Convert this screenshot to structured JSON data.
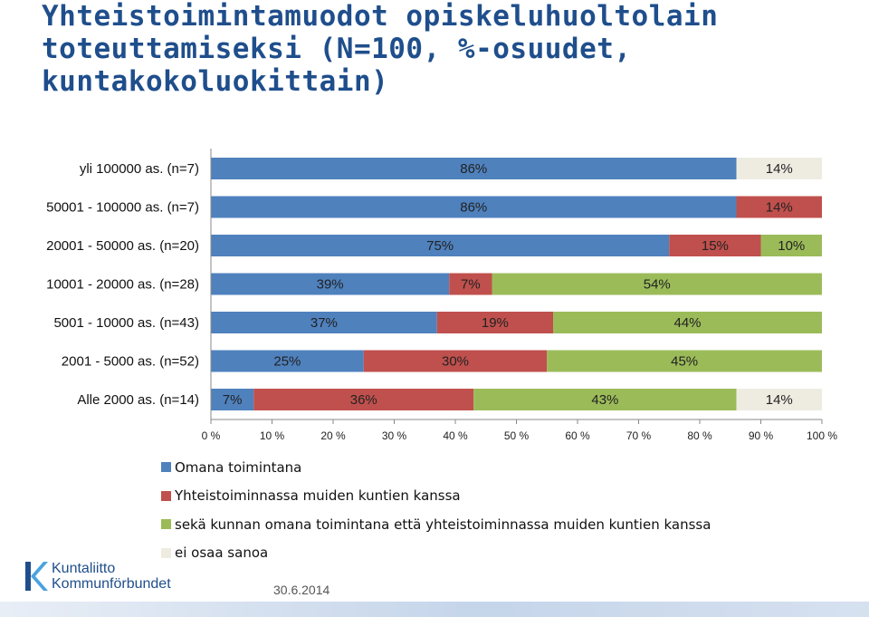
{
  "title": "Yhteistoimintamuodot opiskeluhuoltolain toteuttamiseksi (N=100, %-osuudet, kuntakokoluokittain)",
  "chart_data": {
    "type": "bar",
    "orientation": "horizontal",
    "stacked": true,
    "categories": [
      "yli 100000 as. (n=7)",
      "50001 - 100000 as. (n=7)",
      "20001 - 50000 as. (n=20)",
      "10001 - 20000 as. (n=28)",
      "5001 - 10000 as. (n=43)",
      "2001 - 5000 as. (n=52)",
      "Alle 2000 as. (n=14)"
    ],
    "series": [
      {
        "name": "Omana toimintana",
        "color": "#4f81bd",
        "values": [
          86,
          86,
          75,
          39,
          37,
          25,
          7
        ]
      },
      {
        "name": "Yhteistoiminnassa muiden kuntien kanssa",
        "color": "#c0504d",
        "values": [
          0,
          14,
          15,
          7,
          19,
          30,
          36
        ]
      },
      {
        "name": "sekä kunnan omana toimintana että yhteistoiminnassa muiden kuntien kanssa",
        "color": "#9bbb59",
        "values": [
          0,
          0,
          10,
          54,
          44,
          45,
          43
        ]
      },
      {
        "name": "ei osaa sanoa",
        "color": "#eeece1",
        "values": [
          14,
          0,
          0,
          0,
          0,
          0,
          14
        ]
      }
    ],
    "xticks": [
      "0 %",
      "10 %",
      "20 %",
      "30 %",
      "40 %",
      "50 %",
      "60 %",
      "70 %",
      "80 %",
      "90 %",
      "100 %"
    ],
    "xlim": [
      0,
      100
    ],
    "legend_position": "bottom",
    "grid": false
  },
  "footer": {
    "date": "30.6.2014",
    "logo_line1": "Kuntaliitto",
    "logo_line2": "Kommunförbundet"
  }
}
